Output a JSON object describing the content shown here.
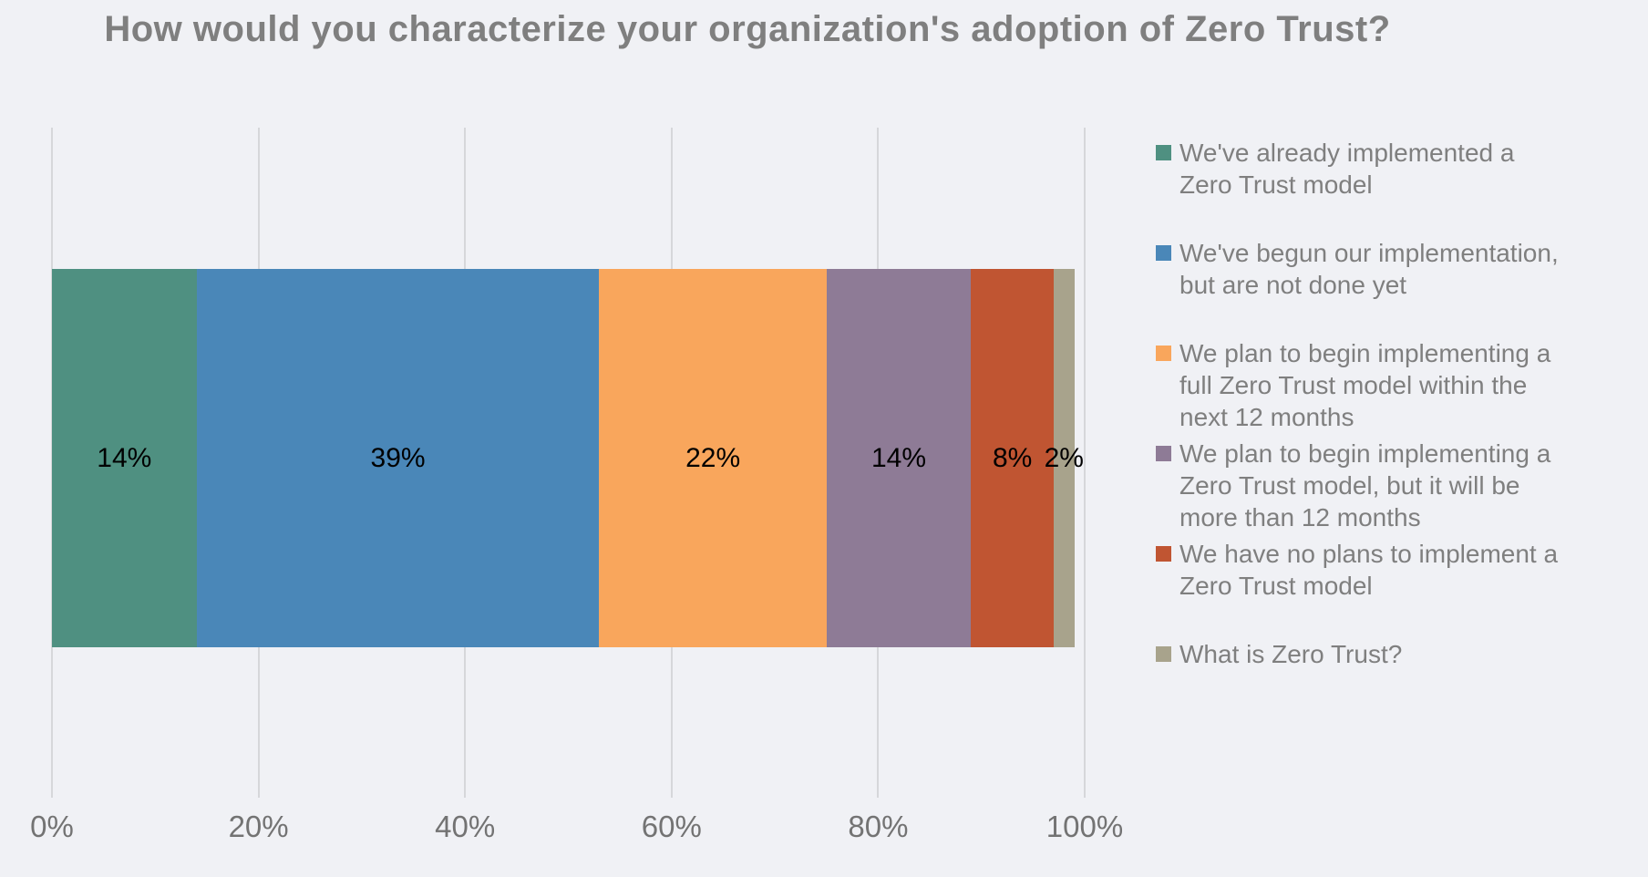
{
  "title": "How would you characterize your organization's adoption of Zero Trust?",
  "colors": {
    "background": "#f0f1f5",
    "title_text": "#7f7f7f",
    "axis_text": "#737373",
    "gridline": "#d6d7da",
    "data_label_text": "#000000"
  },
  "chart_data": {
    "type": "bar",
    "subtype": "horizontal-stacked",
    "title": "How would you characterize your organization's adoption of Zero Trust?",
    "xlabel": "",
    "ylabel": "",
    "xlim": [
      0,
      100
    ],
    "grid": true,
    "legend_position": "right",
    "x_ticks": [
      "0%",
      "20%",
      "40%",
      "60%",
      "80%",
      "100%"
    ],
    "series": [
      {
        "name": "We've already implemented a Zero Trust model",
        "value": 14,
        "label": "14%",
        "color": "#4f9081"
      },
      {
        "name": "We've begun our implementation, but are not done yet",
        "value": 39,
        "label": "39%",
        "color": "#4a87b8"
      },
      {
        "name": "We plan to begin implementing a full Zero Trust model within the next 12 months",
        "value": 22,
        "label": "22%",
        "color": "#f9a65c"
      },
      {
        "name": "We plan to begin implementing a Zero Trust model, but it will be more than 12 months",
        "value": 14,
        "label": "14%",
        "color": "#8e7b96"
      },
      {
        "name": "We have no plans to implement a Zero Trust model",
        "value": 8,
        "label": "8%",
        "color": "#c05532"
      },
      {
        "name": "What is Zero Trust?",
        "value": 2,
        "label": "2%",
        "color": "#a8a38c"
      }
    ]
  }
}
